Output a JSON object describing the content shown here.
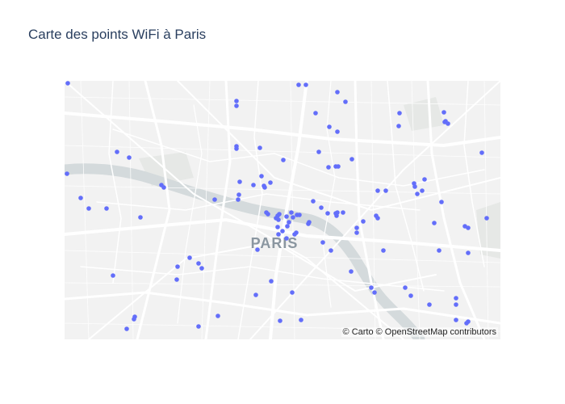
{
  "title": "Carte des points WiFi à Paris",
  "map": {
    "city_label": "PARIS",
    "attribution": "© Carto © OpenStreetMap contributors",
    "basemap": "carto-positron",
    "marker_color": "#636efa",
    "river_color": "#d4dadc",
    "park_color": "#e6e8e6",
    "road_color": "#ffffff"
  }
}
